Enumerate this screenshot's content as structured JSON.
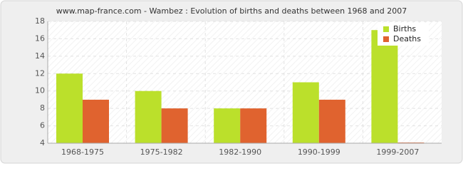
{
  "chart_data": {
    "type": "bar",
    "title": "www.map-france.com - Wambez : Evolution of births and deaths between 1968 and 2007",
    "categories": [
      "1968-1975",
      "1975-1982",
      "1982-1990",
      "1990-1999",
      "1999-2007"
    ],
    "series": [
      {
        "name": "Births",
        "color": "#bbe02b",
        "values": [
          12,
          10,
          8,
          11,
          17
        ]
      },
      {
        "name": "Deaths",
        "color": "#e0632f",
        "values": [
          9,
          8,
          8,
          9,
          4
        ]
      }
    ],
    "ylim": [
      4,
      18
    ],
    "yticks": [
      4,
      6,
      8,
      10,
      12,
      14,
      16,
      18
    ],
    "grid": true,
    "legend": "top-right"
  }
}
